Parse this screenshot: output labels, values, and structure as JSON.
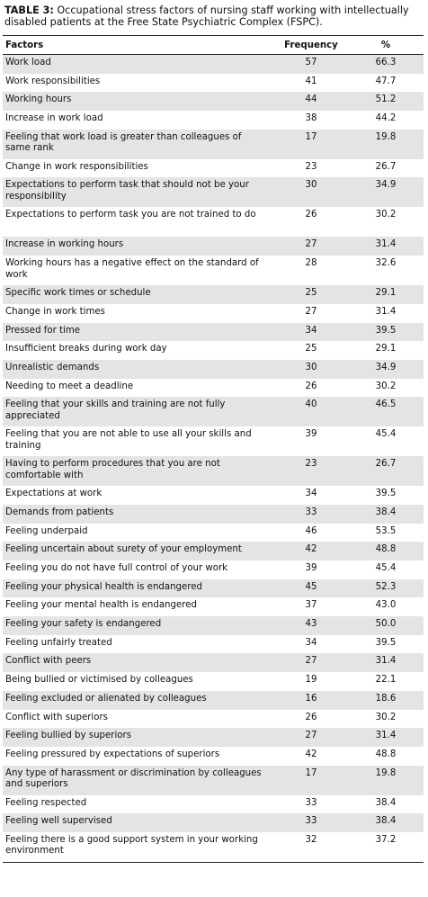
{
  "caption": {
    "label": "TABLE 3:",
    "text": " Occupational stress factors of nursing staff working with intellectually disabled patients at the Free State Psychiatric Complex (FSPC)."
  },
  "table": {
    "headers": [
      "Factors",
      "Frequency",
      "%"
    ],
    "rows": [
      [
        "Work load",
        "57",
        "66.3"
      ],
      [
        "Work responsibilities",
        "41",
        "47.7"
      ],
      [
        "Working hours",
        "44",
        "51.2"
      ],
      [
        "Increase in work load",
        "38",
        "44.2"
      ],
      [
        "Feeling that work load is greater than colleagues of same rank",
        "17",
        "19.8"
      ],
      [
        "Change in work responsibilities",
        "23",
        "26.7"
      ],
      [
        "Expectations to perform task that should not be your responsibility",
        "30",
        "34.9"
      ],
      [
        "Expectations to perform task you are not trained to do",
        "26",
        "30.2"
      ],
      [
        "Increase in working hours",
        "27",
        "31.4"
      ],
      [
        "Working hours has a negative effect on the standard of work",
        "28",
        "32.6"
      ],
      [
        "Specific work times or schedule",
        "25",
        "29.1"
      ],
      [
        "Change in work times",
        "27",
        "31.4"
      ],
      [
        "Pressed for time",
        "34",
        "39.5"
      ],
      [
        "Insufficient breaks during work day",
        "25",
        "29.1"
      ],
      [
        "Unrealistic demands",
        "30",
        "34.9"
      ],
      [
        "Needing to meet a deadline",
        "26",
        "30.2"
      ],
      [
        "Feeling that your skills and training are not fully appreciated",
        "40",
        "46.5"
      ],
      [
        "Feeling that you are not able to use all your skills and training",
        "39",
        "45.4"
      ],
      [
        "Having to perform procedures that you are not comfortable with",
        "23",
        "26.7"
      ],
      [
        "Expectations at work",
        "34",
        "39.5"
      ],
      [
        "Demands from patients",
        "33",
        "38.4"
      ],
      [
        "Feeling underpaid",
        "46",
        "53.5"
      ],
      [
        "Feeling uncertain about surety of your employment",
        "42",
        "48.8"
      ],
      [
        "Feeling you do not have full control of your work",
        "39",
        "45.4"
      ],
      [
        "Feeling your physical health is endangered",
        "45",
        "52.3"
      ],
      [
        "Feeling your mental health is endangered",
        "37",
        "43.0"
      ],
      [
        "Feeling your safety is endangered",
        "43",
        "50.0"
      ],
      [
        "Feeling unfairly treated",
        "34",
        "39.5"
      ],
      [
        "Conflict with peers",
        "27",
        "31.4"
      ],
      [
        "Being bullied or victimised by colleagues",
        "19",
        "22.1"
      ],
      [
        "Feeling excluded or alienated by colleagues",
        "16",
        "18.6"
      ],
      [
        "Conflict with superiors",
        "26",
        "30.2"
      ],
      [
        "Feeling bullied by superiors",
        "27",
        "31.4"
      ],
      [
        "Feeling pressured by expectations of superiors",
        "42",
        "48.8"
      ],
      [
        "Any type of harassment or discrimination by colleagues and superiors",
        "17",
        "19.8"
      ],
      [
        "Feeling respected",
        "33",
        "38.4"
      ],
      [
        "Feeling well supervised",
        "33",
        "38.4"
      ],
      [
        "Feeling there is a good support system in your working environment",
        "32",
        "37.2"
      ]
    ]
  }
}
